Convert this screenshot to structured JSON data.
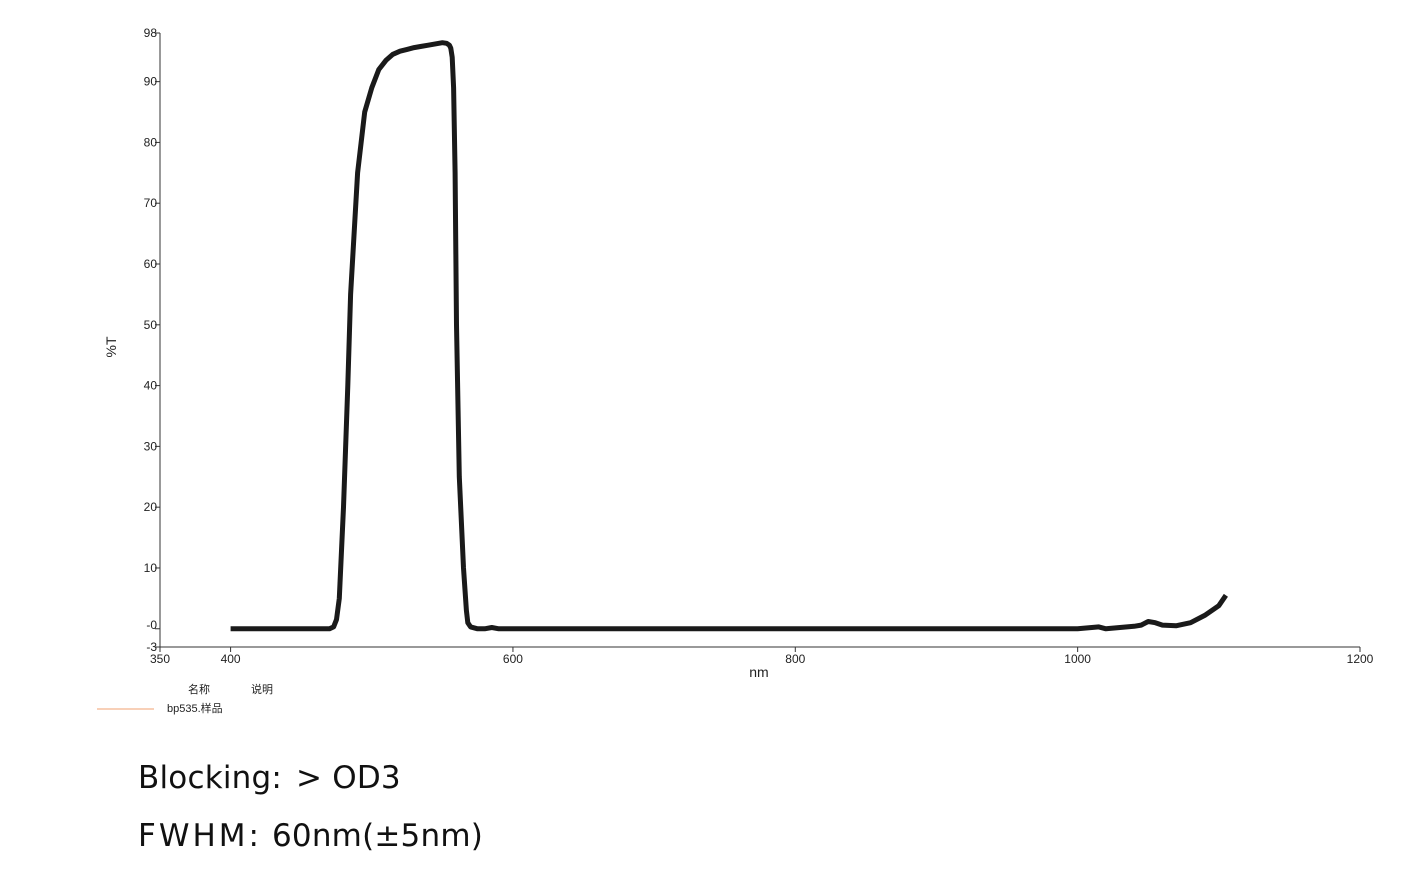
{
  "chart_data": {
    "type": "line",
    "xlabel": "nm",
    "ylabel": "%T",
    "xlim": [
      350,
      1200
    ],
    "ylim": [
      -3,
      98
    ],
    "x_ticks": [
      350,
      400,
      600,
      800,
      1000,
      1200
    ],
    "y_ticks": [
      90,
      80,
      70,
      60,
      50,
      40,
      30,
      20,
      10
    ],
    "y_tick_labels_special": [
      {
        "value": 98,
        "label": "98"
      },
      {
        "value": 0,
        "label": "-0"
      },
      {
        "value": -3,
        "label": "-3"
      }
    ],
    "grid": false,
    "legend": {
      "placement": "bottom-left",
      "headers": [
        "名称",
        "说明"
      ],
      "entries": [
        {
          "name": "bp535.样品",
          "color": "#f0a070"
        }
      ]
    },
    "series": [
      {
        "name": "bp535.样品",
        "color": "#1a1a1a",
        "x": [
          400,
          450,
          470,
          473,
          475,
          477,
          480,
          483,
          485,
          490,
          495,
          500,
          505,
          510,
          515,
          520,
          525,
          530,
          535,
          540,
          545,
          550,
          553,
          555,
          556,
          557,
          558,
          559,
          560,
          562,
          565,
          567,
          568,
          570,
          575,
          580,
          585,
          590,
          600,
          700,
          800,
          900,
          1000,
          1010,
          1015,
          1020,
          1030,
          1040,
          1045,
          1050,
          1055,
          1060,
          1070,
          1080,
          1090,
          1100,
          1105
        ],
        "y": [
          0,
          0,
          0,
          0.3,
          1.5,
          5,
          20,
          40,
          55,
          75,
          85,
          89,
          92,
          93.5,
          94.5,
          95,
          95.3,
          95.6,
          95.8,
          96,
          96.2,
          96.4,
          96.3,
          96,
          95.5,
          94,
          89,
          75,
          50,
          25,
          10,
          3,
          1,
          0.3,
          0,
          0,
          0.2,
          0,
          0,
          0,
          0,
          0,
          0,
          0.2,
          0.3,
          0,
          0.2,
          0.4,
          0.6,
          1.2,
          1.0,
          0.6,
          0.5,
          1.0,
          2.2,
          3.8,
          5.5
        ]
      }
    ]
  },
  "specs": {
    "blocking_label": "Blocking:",
    "blocking_value": "> OD3",
    "fwhm_label": "FWHM:",
    "fwhm_value": "60nm(±5nm)"
  }
}
